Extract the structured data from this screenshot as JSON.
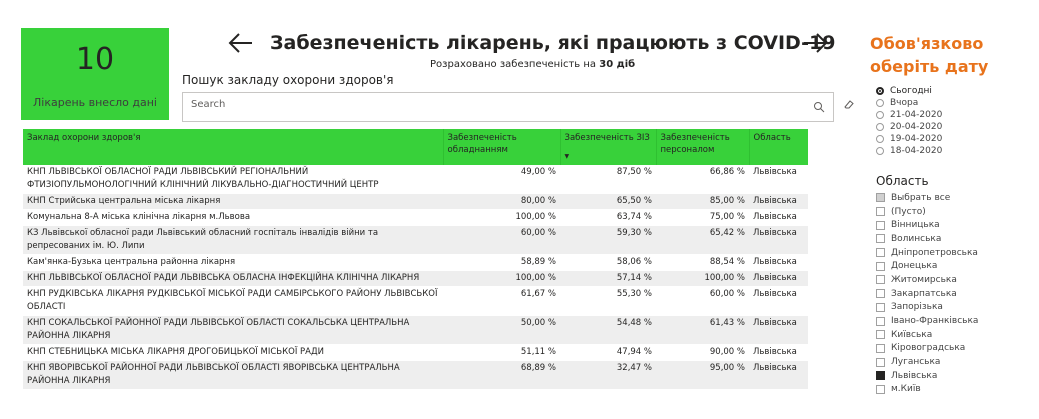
{
  "kpi": {
    "value": "10",
    "label": "Лікарень внесло дані"
  },
  "header": {
    "title": "Забезпеченість лікарень, які працюють з COVID-19",
    "subtitle_prefix": "Розраховано забезпеченість на",
    "subtitle_bold": "30 діб"
  },
  "notice": {
    "line1": "Обов'язково",
    "line2": "оберіть дату"
  },
  "search": {
    "label": "Пошук закладу охорони здоров'я",
    "placeholder": "Search",
    "value": ""
  },
  "table": {
    "columns": [
      "Заклад охорони здоров'я",
      "Забезпеченість обладнанням",
      "Забезпеченість ЗІЗ",
      "Забезпеченість персоналом",
      "Область"
    ],
    "rows": [
      [
        "КНП ЛЬВІВСЬКОЇ ОБЛАСНОЇ РАДИ ЛЬВІВСЬКИЙ РЕГІОНАЛЬНИЙ ФТИЗІОПУЛЬМОНОЛОГІЧНИЙ КЛІНІЧНИЙ ЛІКУВАЛЬНО-ДІАГНОСТИЧНИЙ ЦЕНТР",
        "49,00 %",
        "87,50 %",
        "66,86 %",
        "Львівська"
      ],
      [
        "КНП Стрийська центральна міська лікарня",
        "80,00 %",
        "65,50 %",
        "85,00 %",
        "Львівська"
      ],
      [
        "Комунальна 8-А міська клінічна лікарня м.Львова",
        "100,00 %",
        "63,74 %",
        "75,00 %",
        "Львівська"
      ],
      [
        "КЗ Львівської обласної ради Львівський обласний госпіталь інвалідів війни та репресованих ім. Ю. Липи",
        "60,00 %",
        "59,30 %",
        "65,42 %",
        "Львівська"
      ],
      [
        "Кам'янка-Бузька центральна районна лікарня",
        "58,89 %",
        "58,06 %",
        "88,54 %",
        "Львівська"
      ],
      [
        "КНП ЛЬВІВСЬКОЇ ОБЛАСНОЇ РАДИ ЛЬВІВСЬКА ОБЛАСНА ІНФЕКЦІЙНА КЛІНІЧНА ЛІКАРНЯ",
        "100,00 %",
        "57,14 %",
        "100,00 %",
        "Львівська"
      ],
      [
        "КНП РУДКІВСЬКА ЛІКАРНЯ РУДКІВСЬКОЇ МІСЬКОЇ РАДИ САМБІРСЬКОГО РАЙОНУ ЛЬВІВСЬКОЇ ОБЛАСТІ",
        "61,67 %",
        "55,30 %",
        "60,00 %",
        "Львівська"
      ],
      [
        "КНП СОКАЛЬСЬКОЇ РАЙОННОЇ РАДИ ЛЬВІВСЬКОЇ ОБЛАСТІ СОКАЛЬСЬКА ЦЕНТРАЛЬНА РАЙОННА ЛІКАРНЯ",
        "50,00 %",
        "54,48 %",
        "61,43 %",
        "Львівська"
      ],
      [
        "КНП СТЕБНИЦЬКА МІСЬКА ЛІКАРНЯ ДРОГОБИЦЬКОЇ МІСЬКОЇ РАДИ",
        "51,11 %",
        "47,94 %",
        "90,00 %",
        "Львівська"
      ],
      [
        "КНП ЯВОРІВСЬКОЇ РАЙОННОЇ РАДИ ЛЬВІВСЬКОЇ ОБЛАСТІ ЯВОРІВСЬКА ЦЕНТРАЛЬНА РАЙОННА ЛІКАРНЯ",
        "68,89 %",
        "32,47 %",
        "95,00 %",
        "Львівська"
      ]
    ]
  },
  "dates": {
    "selected": 0,
    "items": [
      "Сьогодні",
      "Вчора",
      "21-04-2020",
      "20-04-2020",
      "19-04-2020",
      "18-04-2020"
    ]
  },
  "regions": {
    "title": "Область",
    "items": [
      {
        "label": "Выбрать все",
        "state": "partial"
      },
      {
        "label": "(Пусто)",
        "state": "unchecked"
      },
      {
        "label": "Вінницька",
        "state": "unchecked"
      },
      {
        "label": "Волинська",
        "state": "unchecked"
      },
      {
        "label": "Дніпропетровська",
        "state": "unchecked"
      },
      {
        "label": "Донецька",
        "state": "unchecked"
      },
      {
        "label": "Житомирська",
        "state": "unchecked"
      },
      {
        "label": "Закарпатська",
        "state": "unchecked"
      },
      {
        "label": "Запорізька",
        "state": "unchecked"
      },
      {
        "label": "Івано-Франківська",
        "state": "unchecked"
      },
      {
        "label": "Київська",
        "state": "unchecked"
      },
      {
        "label": "Кіровоградська",
        "state": "unchecked"
      },
      {
        "label": "Луганська",
        "state": "unchecked"
      },
      {
        "label": "Львівська",
        "state": "checked"
      },
      {
        "label": "м.Київ",
        "state": "unchecked"
      }
    ]
  },
  "colors": {
    "accent_green": "#38d13a",
    "notice_orange": "#e8731c",
    "text": "#252423"
  }
}
